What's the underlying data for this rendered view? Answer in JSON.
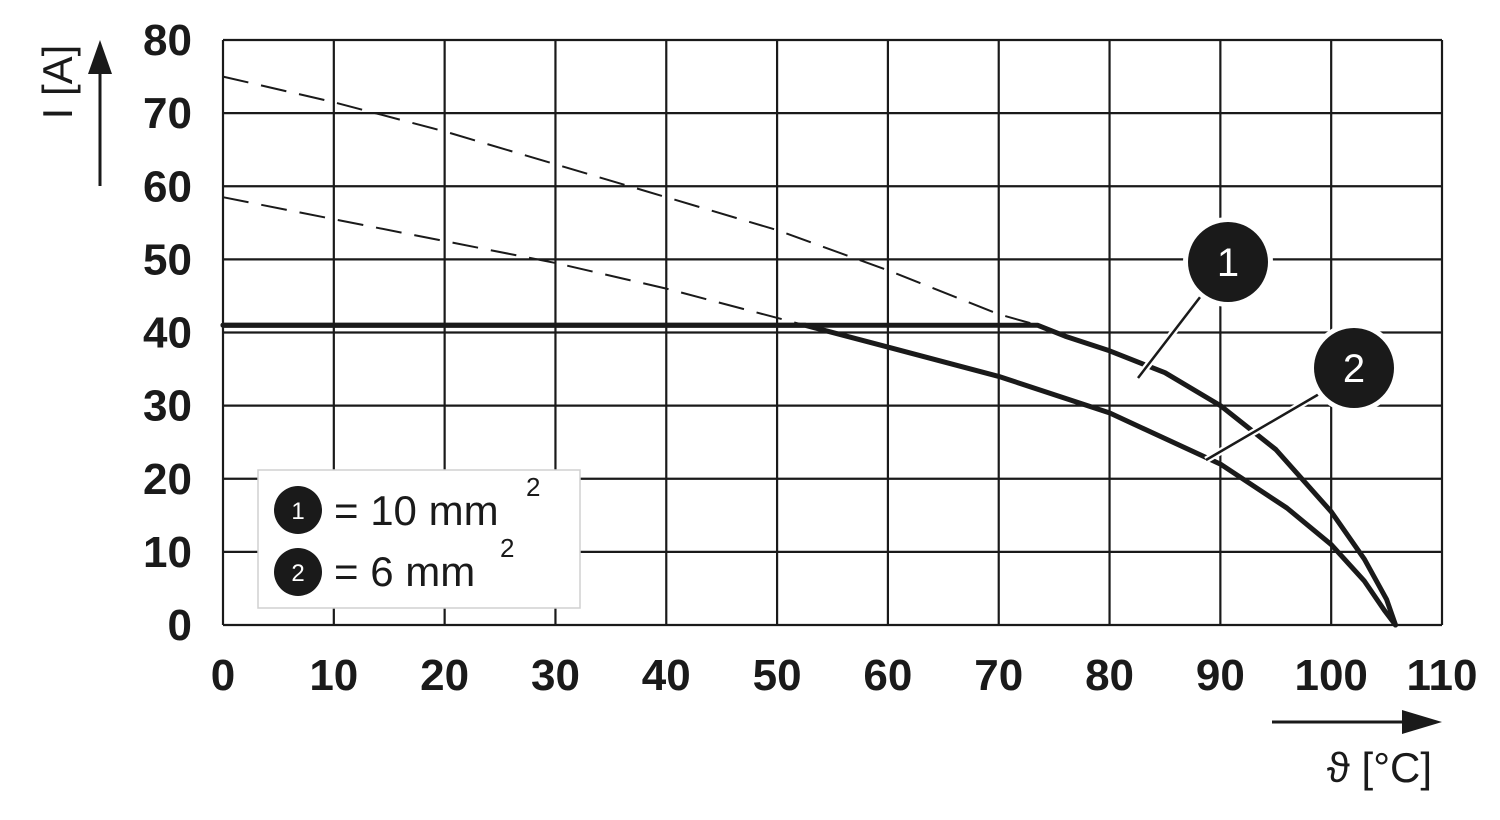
{
  "chart_data": {
    "type": "line",
    "xlabel": "ϑ [°C]",
    "ylabel": "I [A]",
    "xlim": [
      0,
      110
    ],
    "ylim": [
      0,
      80
    ],
    "x_ticks": [
      "0",
      "10",
      "20",
      "30",
      "40",
      "50",
      "60",
      "70",
      "80",
      "90",
      "100",
      "110"
    ],
    "y_ticks": [
      "0",
      "10",
      "20",
      "30",
      "40",
      "50",
      "60",
      "70",
      "80"
    ],
    "grid": true,
    "legend_position": "bottom-left",
    "series": [
      {
        "marker": "1",
        "legend_text": "= 10 mm",
        "legend_sup": "2",
        "solid": [
          [
            0,
            41
          ],
          [
            73.5,
            41
          ],
          [
            76,
            39.5
          ],
          [
            80,
            37.5
          ],
          [
            85,
            34.5
          ],
          [
            90,
            30
          ],
          [
            95,
            24
          ],
          [
            100,
            15.5
          ],
          [
            103,
            9
          ],
          [
            105,
            3.5
          ],
          [
            105.8,
            0
          ]
        ],
        "dashed": [
          [
            0,
            75
          ],
          [
            10,
            71.5
          ],
          [
            20,
            67.5
          ],
          [
            30,
            63
          ],
          [
            40,
            58.5
          ],
          [
            50,
            54
          ],
          [
            60,
            48.5
          ],
          [
            70,
            42.5
          ],
          [
            73.5,
            41
          ]
        ],
        "color": "#1a1a1a"
      },
      {
        "marker": "2",
        "legend_text": "= 6 mm",
        "legend_sup": "2",
        "solid": [
          [
            0,
            41
          ],
          [
            52.5,
            41
          ],
          [
            60,
            38
          ],
          [
            70,
            34
          ],
          [
            80,
            29
          ],
          [
            90,
            22
          ],
          [
            96,
            16
          ],
          [
            100,
            11
          ],
          [
            103,
            6
          ],
          [
            104.8,
            2
          ],
          [
            105.8,
            0
          ]
        ],
        "dashed": [
          [
            0,
            58.5
          ],
          [
            10,
            55.5
          ],
          [
            20,
            52.5
          ],
          [
            30,
            49.5
          ],
          [
            40,
            46
          ],
          [
            52.5,
            41
          ]
        ],
        "color": "#1a1a1a"
      }
    ]
  }
}
